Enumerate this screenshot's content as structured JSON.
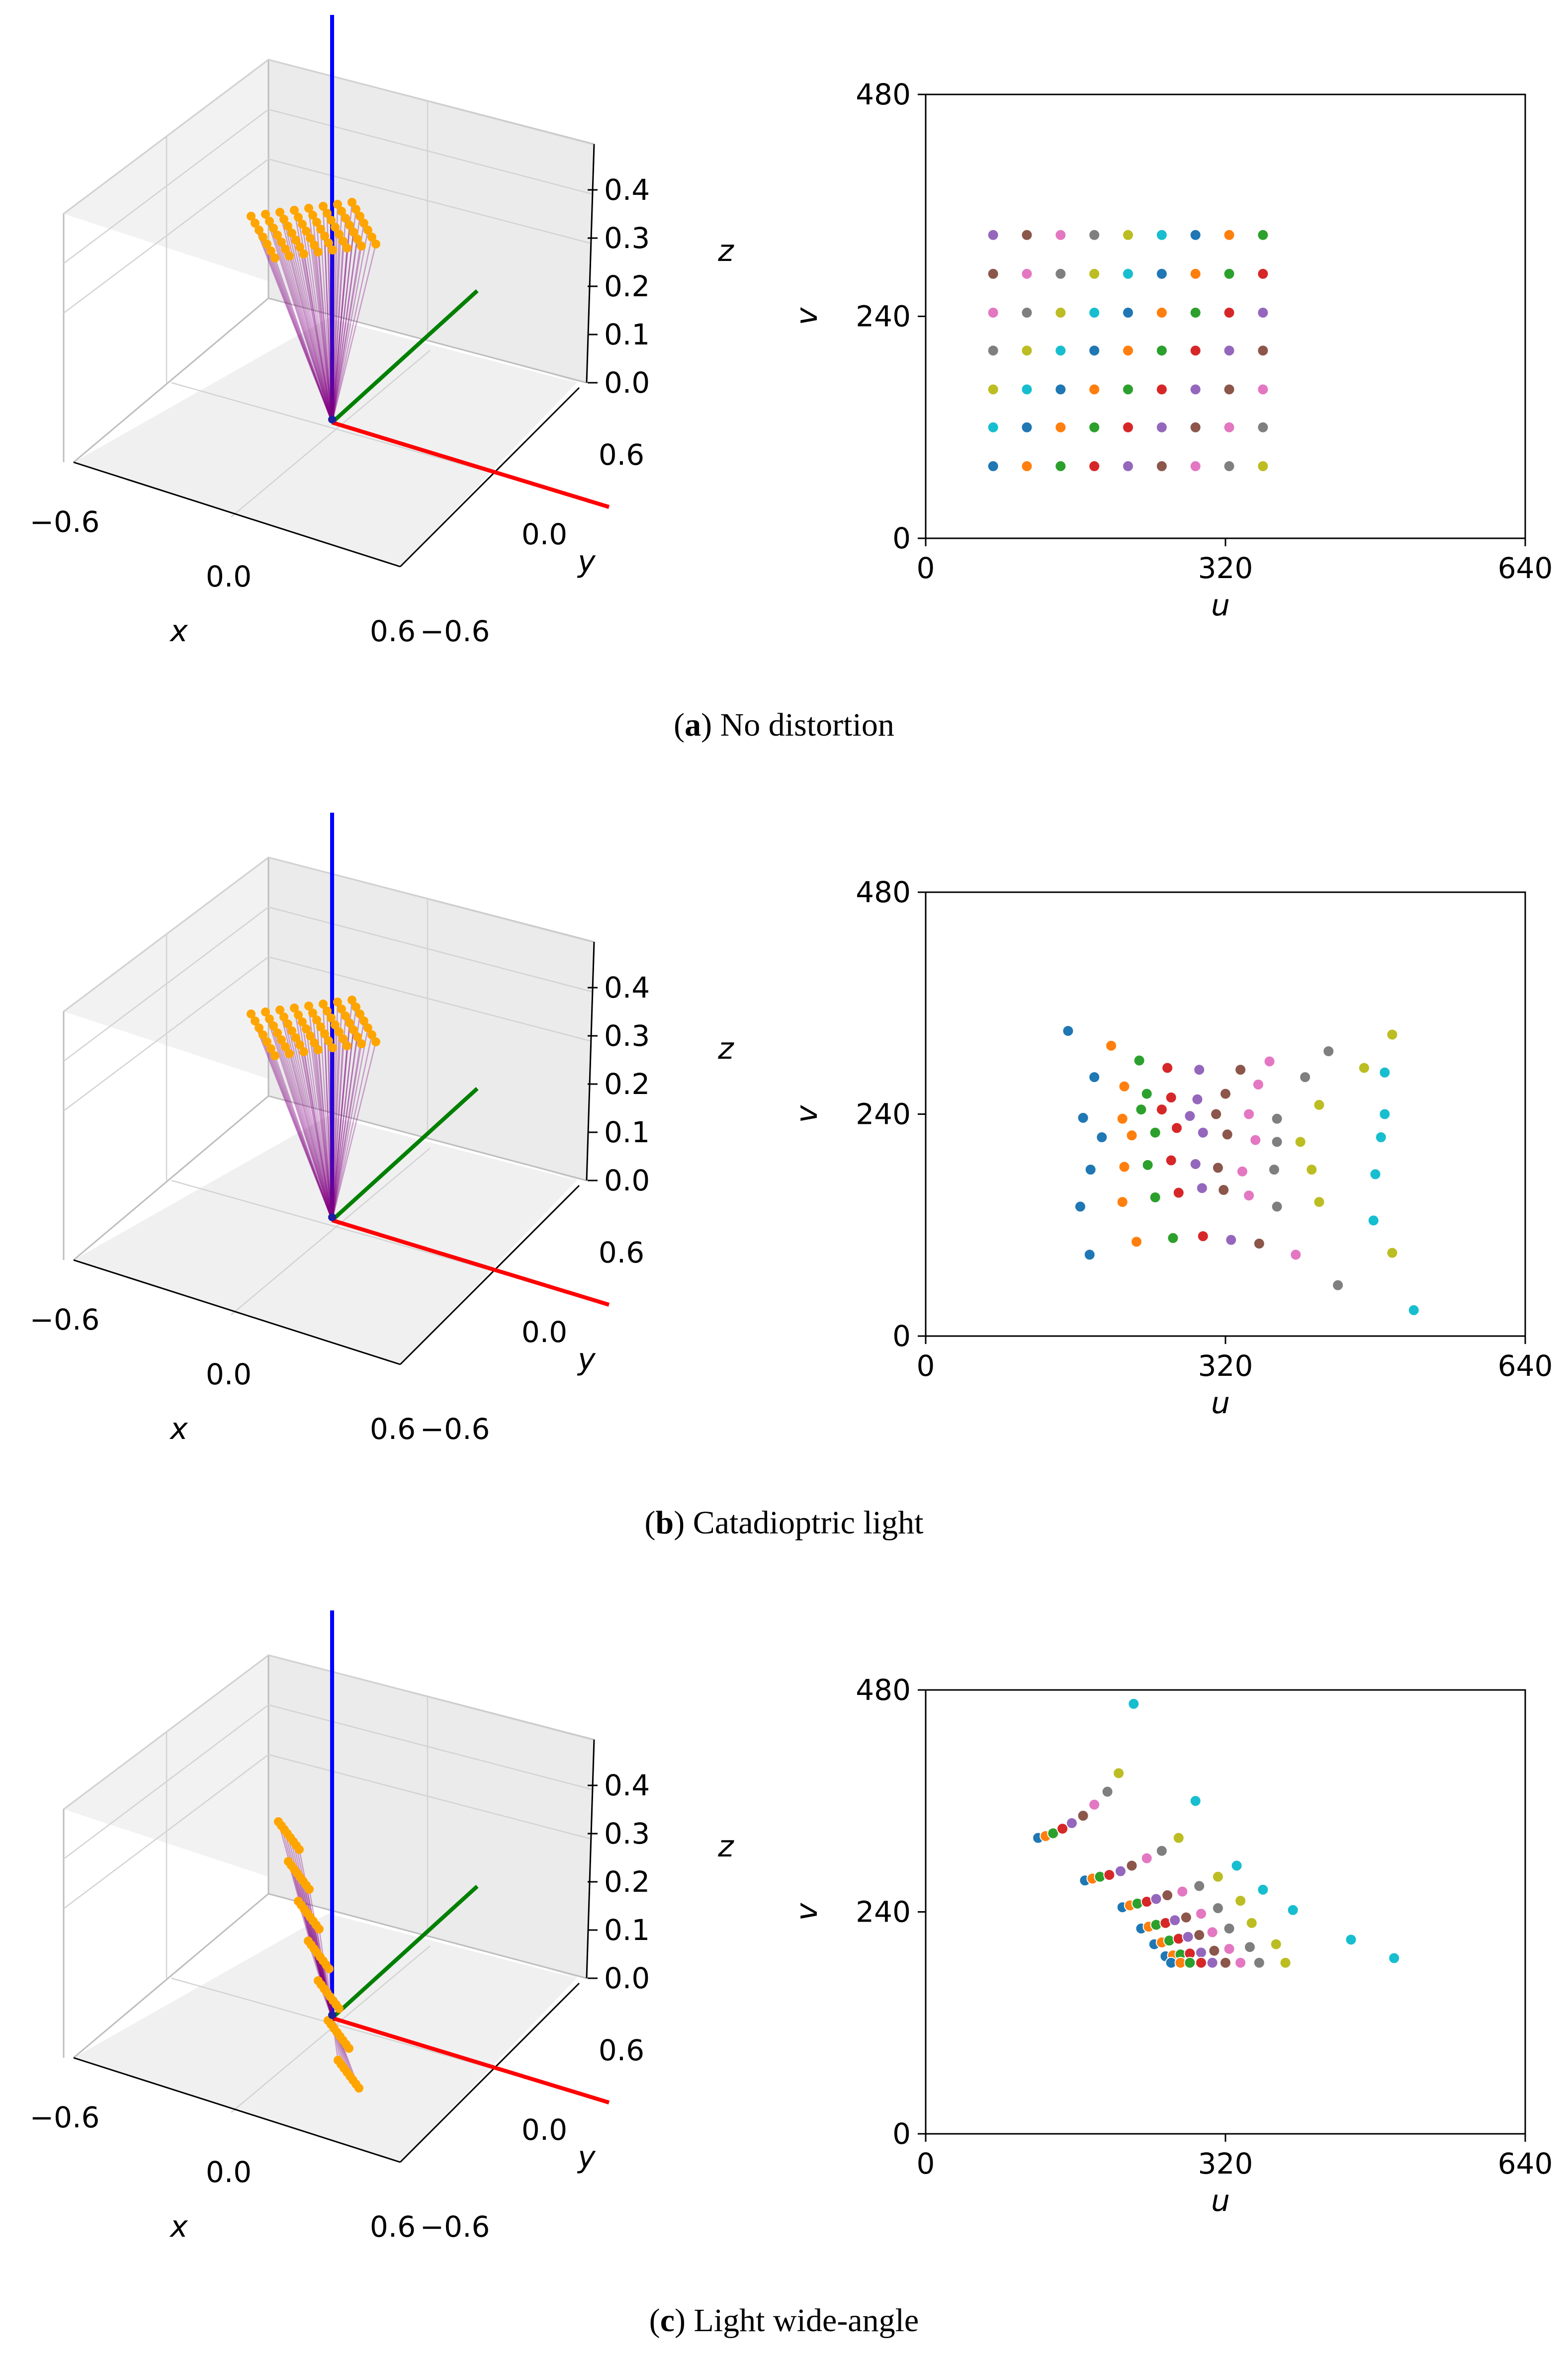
{
  "figure": {
    "panels": [
      {
        "letter": "a",
        "caption": "No distortion"
      },
      {
        "letter": "b",
        "caption": "Catadioptric light"
      },
      {
        "letter": "c",
        "caption": "Light wide-angle"
      }
    ]
  },
  "chart_data": [
    {
      "panel": "a",
      "type": "scatter3d",
      "title": "",
      "xlabel": "x",
      "ylabel": "y",
      "zlabel": "z",
      "xticks": [
        "−0.6",
        "0.0",
        "0.6"
      ],
      "yticks": [
        "−0.6",
        "0.0",
        "0.6"
      ],
      "zticks": [
        "0.0",
        "0.1",
        "0.2",
        "0.3",
        "0.4"
      ],
      "xlim": [
        -0.6,
        0.6
      ],
      "ylim": [
        -0.6,
        0.6
      ],
      "zlim": [
        0,
        0.4
      ],
      "camera_axes": {
        "x": "#ff0000",
        "y": "#008000",
        "z": "#0000ff"
      },
      "points_color": "#ffa500",
      "rays_color": "#800080",
      "grid": {
        "rows": 7,
        "cols": 8
      },
      "pattern": "flat_square_z_0.26"
    },
    {
      "panel": "a",
      "type": "scatter",
      "xlabel": "u",
      "ylabel": "v",
      "xlim": [
        0,
        640
      ],
      "ylim": [
        0,
        480
      ],
      "xticks": [
        "0",
        "320",
        "640"
      ],
      "yticks": [
        "0",
        "240",
        "480"
      ],
      "palette": [
        "#1f77b4",
        "#ff7f0e",
        "#2ca02c",
        "#d62728",
        "#9467bd",
        "#8c564b",
        "#e377c2",
        "#7f7f7f",
        "#bcbd22",
        "#17becf"
      ],
      "points": [
        [
          72,
          78
        ],
        [
          108,
          78
        ],
        [
          144,
          78
        ],
        [
          180,
          78
        ],
        [
          216,
          78
        ],
        [
          252,
          78
        ],
        [
          288,
          78
        ],
        [
          324,
          78
        ],
        [
          360,
          78
        ],
        [
          72,
          120
        ],
        [
          108,
          120
        ],
        [
          144,
          120
        ],
        [
          180,
          120
        ],
        [
          216,
          120
        ],
        [
          252,
          120
        ],
        [
          288,
          120
        ],
        [
          324,
          120
        ],
        [
          360,
          120
        ],
        [
          72,
          161
        ],
        [
          108,
          161
        ],
        [
          144,
          161
        ],
        [
          180,
          161
        ],
        [
          216,
          161
        ],
        [
          252,
          161
        ],
        [
          288,
          161
        ],
        [
          324,
          161
        ],
        [
          360,
          161
        ],
        [
          72,
          203
        ],
        [
          108,
          203
        ],
        [
          144,
          203
        ],
        [
          180,
          203
        ],
        [
          216,
          203
        ],
        [
          252,
          203
        ],
        [
          288,
          203
        ],
        [
          324,
          203
        ],
        [
          360,
          203
        ],
        [
          72,
          244
        ],
        [
          108,
          244
        ],
        [
          144,
          244
        ],
        [
          180,
          244
        ],
        [
          216,
          244
        ],
        [
          252,
          244
        ],
        [
          288,
          244
        ],
        [
          324,
          244
        ],
        [
          360,
          244
        ],
        [
          72,
          286
        ],
        [
          108,
          286
        ],
        [
          144,
          286
        ],
        [
          180,
          286
        ],
        [
          216,
          286
        ],
        [
          252,
          286
        ],
        [
          288,
          286
        ],
        [
          324,
          286
        ],
        [
          360,
          286
        ],
        [
          72,
          328
        ],
        [
          108,
          328
        ],
        [
          144,
          328
        ],
        [
          180,
          328
        ],
        [
          216,
          328
        ],
        [
          252,
          328
        ],
        [
          288,
          328
        ],
        [
          324,
          328
        ],
        [
          360,
          328
        ]
      ]
    },
    {
      "panel": "b",
      "type": "scatter3d",
      "title": "",
      "xlabel": "x",
      "ylabel": "y",
      "zlabel": "z",
      "xticks": [
        "−0.6",
        "0.0",
        "0.6"
      ],
      "yticks": [
        "−0.6",
        "0.0",
        "0.6"
      ],
      "zticks": [
        "0.0",
        "0.1",
        "0.2",
        "0.3",
        "0.4"
      ],
      "xlim": [
        -0.6,
        0.6
      ],
      "ylim": [
        -0.6,
        0.6
      ],
      "zlim": [
        0,
        0.4
      ],
      "camera_axes": {
        "x": "#ff0000",
        "y": "#008000",
        "z": "#0000ff"
      },
      "points_color": "#ffa500",
      "rays_color": "#800080",
      "grid": {
        "rows": 7,
        "cols": 8
      },
      "pattern": "flat_square_z_0.26"
    },
    {
      "panel": "b",
      "type": "scatter",
      "xlabel": "u",
      "ylabel": "v",
      "xlim": [
        0,
        640
      ],
      "ylim": [
        0,
        480
      ],
      "xticks": [
        "0",
        "320",
        "640"
      ],
      "yticks": [
        "0",
        "240",
        "480"
      ],
      "palette": [
        "#1f77b4",
        "#ff7f0e",
        "#2ca02c",
        "#d62728",
        "#9467bd",
        "#8c564b",
        "#e377c2",
        "#7f7f7f",
        "#bcbd22",
        "#17becf"
      ],
      "points": [
        [
          175,
          88
        ],
        [
          225,
          102
        ],
        [
          264,
          106
        ],
        [
          296,
          108
        ],
        [
          326,
          104
        ],
        [
          356,
          100
        ],
        [
          395,
          88
        ],
        [
          440,
          55
        ],
        [
          498,
          90
        ],
        [
          521,
          28
        ],
        [
          165,
          140
        ],
        [
          210,
          145
        ],
        [
          245,
          150
        ],
        [
          270,
          155
        ],
        [
          295,
          160
        ],
        [
          318,
          158
        ],
        [
          345,
          152
        ],
        [
          375,
          140
        ],
        [
          420,
          145
        ],
        [
          478,
          125
        ],
        [
          176,
          180
        ],
        [
          212,
          183
        ],
        [
          237,
          185
        ],
        [
          262,
          190
        ],
        [
          288,
          186
        ],
        [
          312,
          182
        ],
        [
          338,
          178
        ],
        [
          372,
          180
        ],
        [
          412,
          180
        ],
        [
          480,
          175
        ],
        [
          188,
          215
        ],
        [
          220,
          217
        ],
        [
          245,
          220
        ],
        [
          268,
          225
        ],
        [
          296,
          220
        ],
        [
          322,
          218
        ],
        [
          352,
          212
        ],
        [
          375,
          210
        ],
        [
          400,
          210
        ],
        [
          486,
          215
        ],
        [
          168,
          236
        ],
        [
          210,
          235
        ],
        [
          230,
          245
        ],
        [
          252,
          245
        ],
        [
          282,
          238
        ],
        [
          310,
          240
        ],
        [
          345,
          240
        ],
        [
          375,
          235
        ],
        [
          420,
          250
        ],
        [
          490,
          240
        ],
        [
          180,
          280
        ],
        [
          212,
          270
        ],
        [
          236,
          262
        ],
        [
          262,
          258
        ],
        [
          290,
          256
        ],
        [
          320,
          262
        ],
        [
          355,
          272
        ],
        [
          405,
          280
        ],
        [
          468,
          290
        ],
        [
          490,
          285
        ],
        [
          152,
          330
        ],
        [
          198,
          314
        ],
        [
          228,
          298
        ],
        [
          258,
          290
        ],
        [
          292,
          288
        ],
        [
          336,
          288
        ],
        [
          367,
          297
        ],
        [
          430,
          308
        ],
        [
          498,
          326
        ]
      ]
    },
    {
      "panel": "c",
      "type": "scatter3d",
      "title": "",
      "xlabel": "x",
      "ylabel": "y",
      "zlabel": "z",
      "xticks": [
        "−0.6",
        "0.0",
        "0.6"
      ],
      "yticks": [
        "−0.6",
        "0.0",
        "0.6"
      ],
      "zticks": [
        "0.0",
        "0.1",
        "0.2",
        "0.3",
        "0.4"
      ],
      "xlim": [
        -0.6,
        0.6
      ],
      "ylim": [
        -0.6,
        0.6
      ],
      "zlim": [
        0,
        0.4
      ],
      "camera_axes": {
        "x": "#ff0000",
        "y": "#008000",
        "z": "#0000ff"
      },
      "points_color": "#ffa500",
      "rays_color": "#800080",
      "grid": {
        "rows": 7,
        "cols": 8
      },
      "pattern": "tilted_strips"
    },
    {
      "panel": "c",
      "type": "scatter",
      "xlabel": "u",
      "ylabel": "v",
      "xlim": [
        0,
        640
      ],
      "ylim": [
        0,
        480
      ],
      "xticks": [
        "0",
        "320",
        "640"
      ],
      "yticks": [
        "0",
        "240",
        "480"
      ],
      "palette": [
        "#1f77b4",
        "#ff7f0e",
        "#2ca02c",
        "#d62728",
        "#9467bd",
        "#8c564b",
        "#e377c2",
        "#7f7f7f",
        "#bcbd22",
        "#17becf"
      ],
      "points": [
        [
          120,
          320
        ],
        [
          128,
          322
        ],
        [
          136,
          325
        ],
        [
          146,
          330
        ],
        [
          156,
          336
        ],
        [
          168,
          344
        ],
        [
          180,
          356
        ],
        [
          194,
          370
        ],
        [
          206,
          390
        ],
        [
          222,
          465
        ],
        [
          170,
          274
        ],
        [
          178,
          276
        ],
        [
          186,
          278
        ],
        [
          196,
          280
        ],
        [
          208,
          284
        ],
        [
          220,
          290
        ],
        [
          236,
          298
        ],
        [
          252,
          306
        ],
        [
          270,
          320
        ],
        [
          288,
          360
        ],
        [
          210,
          245
        ],
        [
          218,
          247
        ],
        [
          226,
          249
        ],
        [
          236,
          251
        ],
        [
          246,
          254
        ],
        [
          258,
          258
        ],
        [
          274,
          262
        ],
        [
          292,
          268
        ],
        [
          312,
          278
        ],
        [
          332,
          290
        ],
        [
          230,
          222
        ],
        [
          238,
          224
        ],
        [
          246,
          226
        ],
        [
          256,
          228
        ],
        [
          266,
          231
        ],
        [
          278,
          234
        ],
        [
          294,
          238
        ],
        [
          312,
          244
        ],
        [
          336,
          252
        ],
        [
          360,
          264
        ],
        [
          244,
          205
        ],
        [
          252,
          207
        ],
        [
          260,
          209
        ],
        [
          270,
          211
        ],
        [
          280,
          213
        ],
        [
          292,
          215
        ],
        [
          306,
          218
        ],
        [
          324,
          222
        ],
        [
          348,
          228
        ],
        [
          392,
          242
        ],
        [
          256,
          192
        ],
        [
          264,
          193
        ],
        [
          272,
          194
        ],
        [
          282,
          195
        ],
        [
          294,
          196
        ],
        [
          308,
          198
        ],
        [
          324,
          200
        ],
        [
          346,
          202
        ],
        [
          374,
          205
        ],
        [
          454,
          210
        ],
        [
          262,
          185
        ],
        [
          272,
          185
        ],
        [
          282,
          185
        ],
        [
          294,
          185
        ],
        [
          306,
          185
        ],
        [
          320,
          185
        ],
        [
          336,
          185
        ],
        [
          356,
          185
        ],
        [
          384,
          185
        ],
        [
          500,
          190
        ]
      ]
    }
  ]
}
